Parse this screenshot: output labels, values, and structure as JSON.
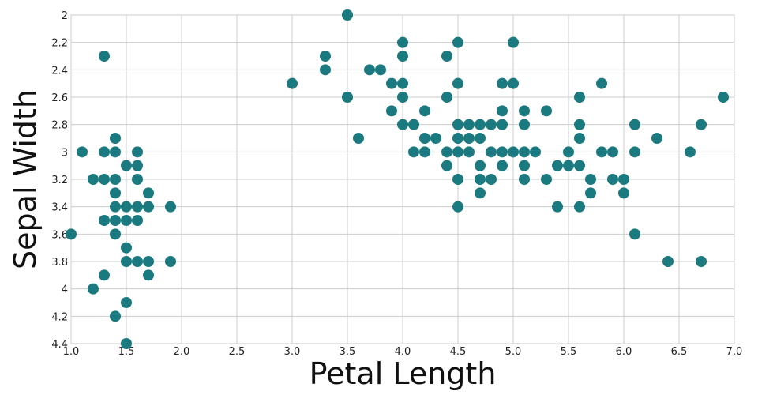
{
  "chart_data": {
    "type": "scatter",
    "xlabel": "Petal Length",
    "ylabel": "Sepal Width",
    "xlim": [
      1.0,
      7.0
    ],
    "ylim": [
      2.0,
      4.4
    ],
    "y_axis_inverted": true,
    "grid": true,
    "xticks": [
      "1.0",
      "1.5",
      "2.0",
      "2.5",
      "3.0",
      "3.5",
      "4.0",
      "4.5",
      "5.0",
      "5.5",
      "6.0",
      "6.5",
      "7.0"
    ],
    "yticks": [
      "2",
      "2.2",
      "2.4",
      "2.6",
      "2.8",
      "3",
      "3.2",
      "3.4",
      "3.6",
      "3.8",
      "4",
      "4.2",
      "4.4"
    ],
    "marker_color": "#1a7a80",
    "points": [
      [
        1.0,
        3.6
      ],
      [
        1.1,
        3.0
      ],
      [
        1.2,
        3.2
      ],
      [
        1.2,
        4.0
      ],
      [
        1.3,
        2.3
      ],
      [
        1.3,
        3.0
      ],
      [
        1.3,
        3.2
      ],
      [
        1.3,
        3.5
      ],
      [
        1.3,
        3.9
      ],
      [
        1.4,
        2.9
      ],
      [
        1.4,
        3.0
      ],
      [
        1.4,
        3.2
      ],
      [
        1.4,
        3.3
      ],
      [
        1.4,
        3.4
      ],
      [
        1.4,
        3.5
      ],
      [
        1.4,
        3.6
      ],
      [
        1.4,
        4.2
      ],
      [
        1.5,
        3.1
      ],
      [
        1.5,
        3.4
      ],
      [
        1.5,
        3.5
      ],
      [
        1.5,
        3.7
      ],
      [
        1.5,
        3.8
      ],
      [
        1.5,
        4.1
      ],
      [
        1.5,
        4.4
      ],
      [
        1.6,
        3.0
      ],
      [
        1.6,
        3.1
      ],
      [
        1.6,
        3.2
      ],
      [
        1.6,
        3.4
      ],
      [
        1.6,
        3.5
      ],
      [
        1.6,
        3.8
      ],
      [
        1.7,
        3.3
      ],
      [
        1.7,
        3.4
      ],
      [
        1.7,
        3.8
      ],
      [
        1.7,
        3.9
      ],
      [
        1.9,
        3.4
      ],
      [
        1.9,
        3.8
      ],
      [
        3.0,
        2.5
      ],
      [
        3.3,
        2.3
      ],
      [
        3.3,
        2.4
      ],
      [
        3.5,
        2.0
      ],
      [
        3.5,
        2.6
      ],
      [
        3.6,
        2.9
      ],
      [
        3.7,
        2.4
      ],
      [
        3.8,
        2.4
      ],
      [
        3.9,
        2.5
      ],
      [
        3.9,
        2.7
      ],
      [
        4.0,
        2.2
      ],
      [
        4.0,
        2.3
      ],
      [
        4.0,
        2.5
      ],
      [
        4.0,
        2.6
      ],
      [
        4.0,
        2.8
      ],
      [
        4.1,
        2.8
      ],
      [
        4.1,
        3.0
      ],
      [
        4.2,
        2.7
      ],
      [
        4.2,
        2.9
      ],
      [
        4.2,
        3.0
      ],
      [
        4.3,
        2.9
      ],
      [
        4.4,
        2.3
      ],
      [
        4.4,
        2.6
      ],
      [
        4.4,
        3.0
      ],
      [
        4.4,
        3.1
      ],
      [
        4.5,
        2.2
      ],
      [
        4.5,
        2.5
      ],
      [
        4.5,
        2.8
      ],
      [
        4.5,
        2.9
      ],
      [
        4.5,
        3.0
      ],
      [
        4.5,
        3.2
      ],
      [
        4.5,
        3.4
      ],
      [
        4.6,
        2.8
      ],
      [
        4.6,
        2.9
      ],
      [
        4.6,
        3.0
      ],
      [
        4.7,
        2.8
      ],
      [
        4.7,
        2.9
      ],
      [
        4.7,
        3.1
      ],
      [
        4.7,
        3.2
      ],
      [
        4.7,
        3.3
      ],
      [
        4.8,
        2.8
      ],
      [
        4.8,
        3.0
      ],
      [
        4.8,
        3.2
      ],
      [
        4.9,
        2.5
      ],
      [
        4.9,
        2.7
      ],
      [
        4.9,
        2.8
      ],
      [
        4.9,
        3.0
      ],
      [
        4.9,
        3.1
      ],
      [
        5.0,
        2.2
      ],
      [
        5.0,
        2.5
      ],
      [
        5.0,
        3.0
      ],
      [
        5.1,
        2.7
      ],
      [
        5.1,
        2.8
      ],
      [
        5.1,
        3.0
      ],
      [
        5.1,
        3.1
      ],
      [
        5.1,
        3.2
      ],
      [
        5.2,
        3.0
      ],
      [
        5.3,
        2.7
      ],
      [
        5.3,
        3.2
      ],
      [
        5.4,
        3.1
      ],
      [
        5.4,
        3.4
      ],
      [
        5.5,
        3.0
      ],
      [
        5.5,
        3.1
      ],
      [
        5.6,
        2.6
      ],
      [
        5.6,
        2.8
      ],
      [
        5.6,
        2.9
      ],
      [
        5.6,
        3.1
      ],
      [
        5.6,
        3.4
      ],
      [
        5.7,
        3.2
      ],
      [
        5.7,
        3.3
      ],
      [
        5.8,
        2.5
      ],
      [
        5.8,
        3.0
      ],
      [
        5.9,
        3.0
      ],
      [
        5.9,
        3.2
      ],
      [
        6.0,
        3.2
      ],
      [
        6.0,
        3.3
      ],
      [
        6.1,
        2.8
      ],
      [
        6.1,
        3.0
      ],
      [
        6.1,
        3.6
      ],
      [
        6.3,
        2.9
      ],
      [
        6.4,
        3.8
      ],
      [
        6.6,
        3.0
      ],
      [
        6.7,
        2.8
      ],
      [
        6.7,
        3.8
      ],
      [
        6.9,
        2.6
      ]
    ]
  }
}
